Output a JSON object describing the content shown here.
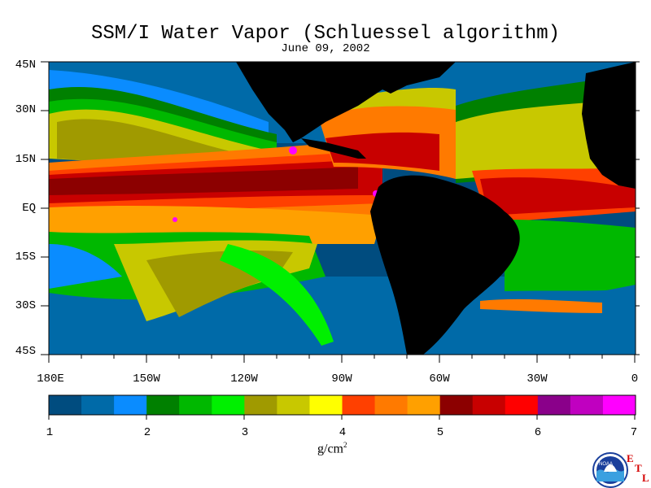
{
  "title": "SSM/I Water Vapor (Schluessel algorithm)",
  "subtitle": "June 09, 2002",
  "latitude_labels": [
    "45N",
    "30N",
    "15N",
    "EQ",
    "15S",
    "30S",
    "45S"
  ],
  "longitude_labels": [
    "180E",
    "150W",
    "120W",
    "90W",
    "60W",
    "30W",
    "0"
  ],
  "colorbar": {
    "tick_labels": [
      "1",
      "2",
      "3",
      "4",
      "5",
      "6",
      "7"
    ],
    "units_label": "g/cm",
    "units_exponent": "2",
    "colors": [
      "#004c7f",
      "#006aa8",
      "#0a8cff",
      "#008000",
      "#00b800",
      "#00f000",
      "#a09a00",
      "#c8c800",
      "#ffff00",
      "#ff4000",
      "#ff7a00",
      "#ffa000",
      "#8c0000",
      "#c80000",
      "#ff0000",
      "#8a008a",
      "#c000c0",
      "#ff00ff"
    ]
  },
  "logo": {
    "name": "NOAA",
    "letters": [
      "E",
      "T",
      "L"
    ]
  }
}
